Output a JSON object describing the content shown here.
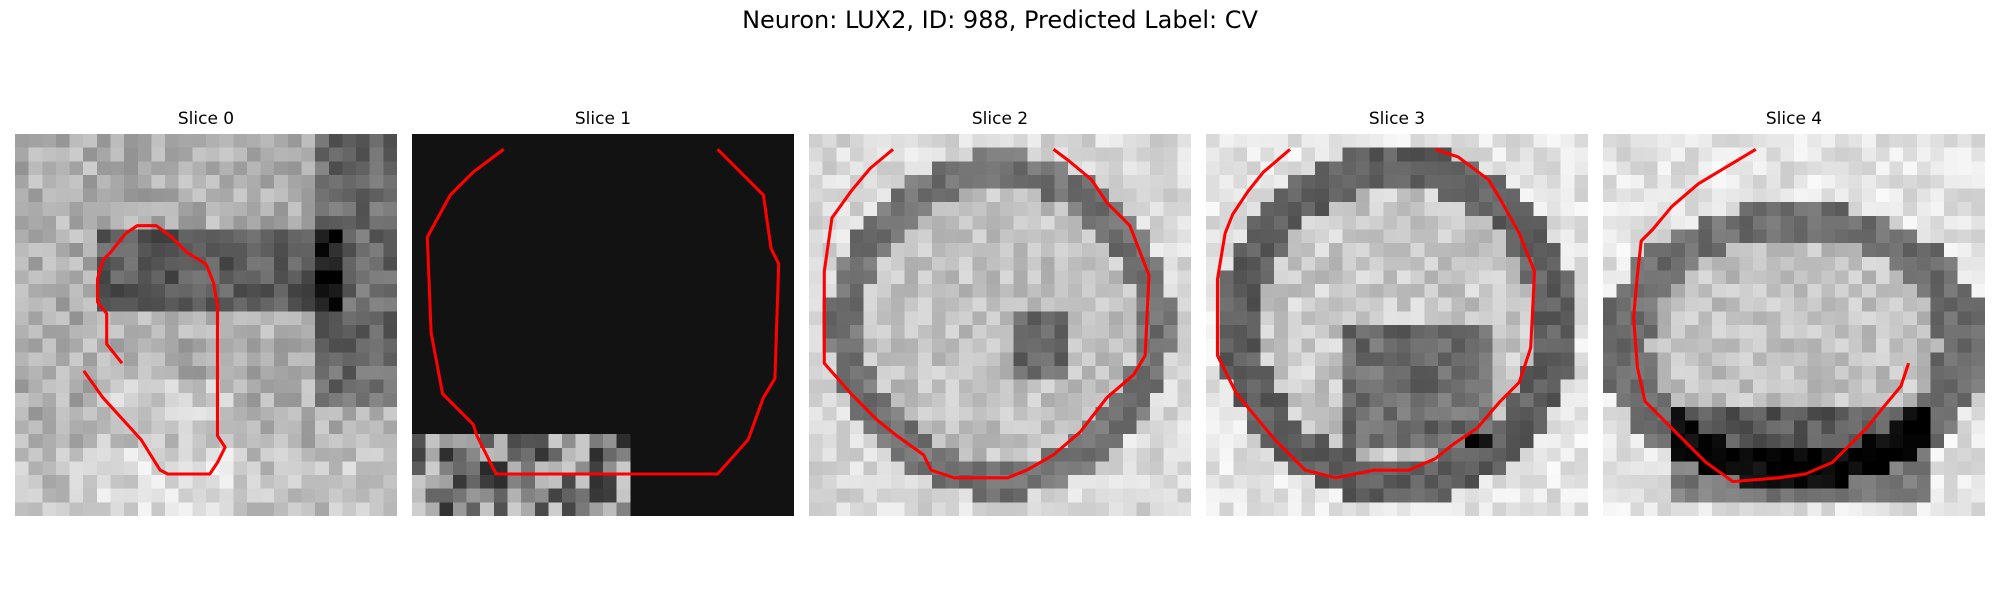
{
  "figure": {
    "title": "Neuron: LUX2, ID: 988, Predicted Label: CV"
  },
  "slices": [
    {
      "label": "Slice 0",
      "image_description": "grayscale microscopy patch of a cell with an irregular red contour",
      "contour_color": "#ff0000"
    },
    {
      "label": "Slice 1",
      "image_description": "mostly black patch with noisy gray lower-left corner and red contour",
      "contour_color": "#ff0000"
    },
    {
      "label": "Slice 2",
      "image_description": "round cell body with dark ring and red contour",
      "contour_color": "#ff0000"
    },
    {
      "label": "Slice 3",
      "image_description": "round cell body with dark ring and red contour",
      "contour_color": "#ff0000"
    },
    {
      "label": "Slice 4",
      "image_description": "oval cell body with dark lower region and red contour",
      "contour_color": "#ff0000"
    }
  ],
  "colormap": "gray"
}
